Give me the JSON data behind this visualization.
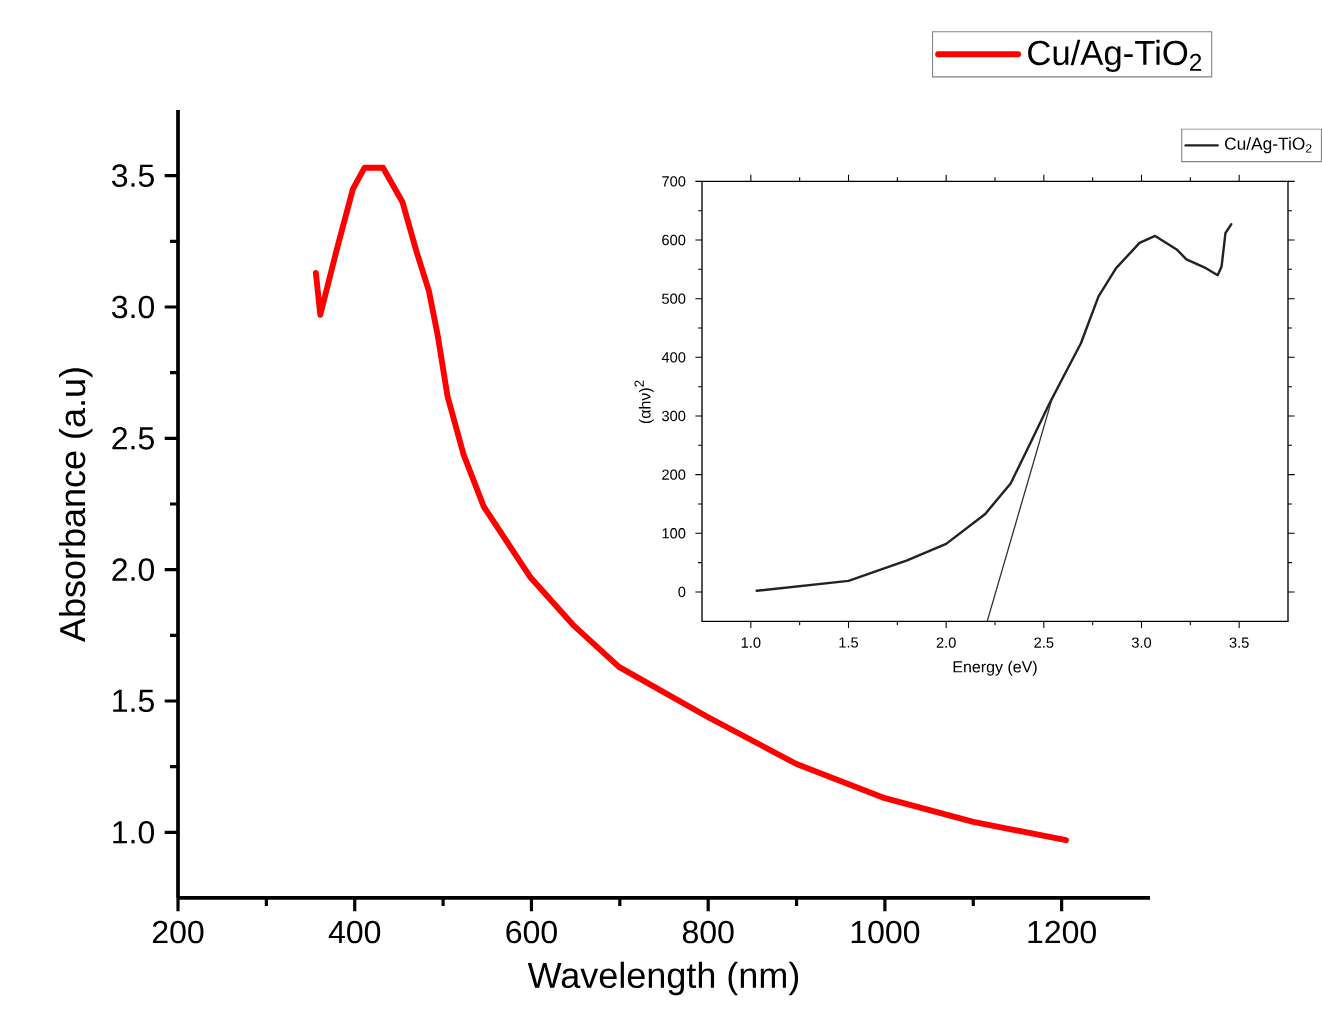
{
  "chart_data": [
    {
      "type": "line",
      "xlabel": "Wavelength (nm)",
      "ylabel": "Absorbance (a.u)",
      "xlim": [
        200,
        1300
      ],
      "ylim": [
        0.75,
        3.75
      ],
      "xticks": [
        200,
        400,
        600,
        800,
        1000,
        1200
      ],
      "yticks": [
        {
          "value": 1.0,
          "label": "1.0"
        },
        1.5,
        {
          "value": 2.0,
          "label": "2.0"
        },
        2.5,
        {
          "value": 3.0,
          "label": "3.0"
        },
        3.5
      ],
      "legend": "top right",
      "series": [
        {
          "name": "Cu/Ag-TiO$_{2}$",
          "color": "#ff0000",
          "x": [
            356,
            361,
            379,
            398,
            411,
            432,
            454,
            470,
            484,
            494,
            505,
            523,
            546,
            599,
            647,
            699,
            799,
            900,
            1000,
            1100,
            1205
          ],
          "values": [
            3.13,
            2.97,
            3.21,
            3.45,
            3.53,
            3.53,
            3.4,
            3.21,
            3.06,
            2.89,
            2.66,
            2.44,
            2.24,
            1.97,
            1.79,
            1.63,
            1.44,
            1.26,
            1.13,
            1.04,
            0.97
          ]
        }
      ]
    },
    {
      "type": "line",
      "xlabel": "Energy (eV)",
      "ylabel": "(αhν)$^{2}$",
      "xlim": [
        0.75,
        3.75
      ],
      "ylim": [
        -50,
        700
      ],
      "xticks": [
        {
          "value": 1.0,
          "label": "1.0"
        },
        1.5,
        {
          "value": 2.0,
          "label": "2.0"
        },
        2.5,
        {
          "value": 3.0,
          "label": "3.0"
        },
        3.5
      ],
      "yticks": [
        0,
        100,
        200,
        300,
        400,
        500,
        600,
        700
      ],
      "legend": "top right",
      "series": [
        {
          "name": "Cu/Ag-TiO$_{2}$",
          "color": "#222222",
          "x": [
            1.03,
            1.5,
            1.8,
            2.0,
            2.2,
            2.33,
            2.43,
            2.53,
            2.6,
            2.69,
            2.78,
            2.87,
            2.99,
            3.07,
            3.18,
            3.23,
            3.33,
            3.39,
            3.41,
            3.43,
            3.46
          ],
          "values": [
            2,
            19,
            54,
            82,
            133,
            185,
            253,
            322,
            367,
            424,
            504,
            552,
            595,
            607,
            584,
            567,
            552,
            540,
            555,
            612,
            627
          ]
        },
        {
          "type": "line",
          "color": "#333333",
          "x": [
            2.21,
            2.54
          ],
          "values": [
            -50,
            327
          ]
        }
      ]
    }
  ]
}
